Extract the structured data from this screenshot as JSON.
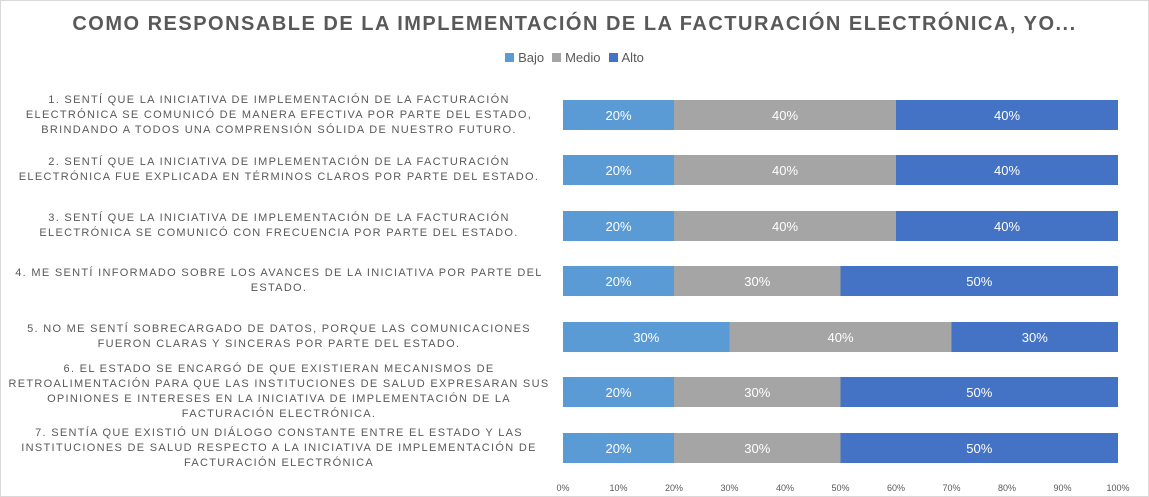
{
  "chart_data": {
    "type": "bar",
    "orientation": "horizontal-stacked-100",
    "title": "COMO RESPONSABLE DE LA IMPLEMENTACIÓN DE LA FACTURACIÓN ELECTRÓNICA, YO...",
    "legend_position": "top",
    "categories": [
      "1. SENTÍ QUE LA INICIATIVA DE IMPLEMENTACIÓN DE LA FACTURACIÓN ELECTRÓNICA SE COMUNICÓ DE MANERA EFECTIVA POR PARTE DEL ESTADO, BRINDANDO A TODOS UNA COMPRENSIÓN SÓLIDA DE NUESTRO FUTURO.",
      "2. SENTÍ QUE LA INICIATIVA DE IMPLEMENTACIÓN DE LA FACTURACIÓN ELECTRÓNICA FUE EXPLICADA EN TÉRMINOS CLAROS POR PARTE DEL ESTADO.",
      "3. SENTÍ QUE LA INICIATIVA DE IMPLEMENTACIÓN DE LA FACTURACIÓN ELECTRÓNICA SE COMUNICÓ CON FRECUENCIA POR PARTE DEL ESTADO.",
      "4. ME SENTÍ INFORMADO SOBRE LOS AVANCES DE LA INICIATIVA POR PARTE DEL ESTADO.",
      "5. NO ME SENTÍ SOBRECARGADO DE DATOS, PORQUE LAS COMUNICACIONES FUERON CLARAS Y SINCERAS POR PARTE DEL ESTADO.",
      "6. EL ESTADO SE ENCARGÓ DE QUE EXISTIERAN MECANISMOS DE RETROALIMENTACIÓN PARA QUE LAS INSTITUCIONES DE SALUD EXPRESARAN SUS OPINIONES E INTERESES EN LA INICIATIVA DE IMPLEMENTACIÓN DE LA FACTURACIÓN ELECTRÓNICA.",
      "7. SENTÍA QUE EXISTIÓ UN DIÁLOGO CONSTANTE ENTRE EL ESTADO Y LAS INSTITUCIONES DE SALUD RESPECTO A LA INICIATIVA DE IMPLEMENTACIÓN DE FACTURACIÓN ELECTRÓNICA"
    ],
    "series": [
      {
        "name": "Bajo",
        "color": "#5B9BD5",
        "values": [
          20,
          20,
          20,
          20,
          30,
          20,
          20
        ]
      },
      {
        "name": "Medio",
        "color": "#A5A5A5",
        "values": [
          40,
          40,
          40,
          30,
          40,
          30,
          30
        ]
      },
      {
        "name": "Alto",
        "color": "#4472C4",
        "values": [
          40,
          40,
          40,
          50,
          30,
          50,
          50
        ]
      }
    ],
    "xlim": [
      0,
      100
    ],
    "x_ticks": [
      "0%",
      "10%",
      "20%",
      "30%",
      "40%",
      "50%",
      "60%",
      "70%",
      "80%",
      "90%",
      "100%"
    ],
    "grid": false
  }
}
